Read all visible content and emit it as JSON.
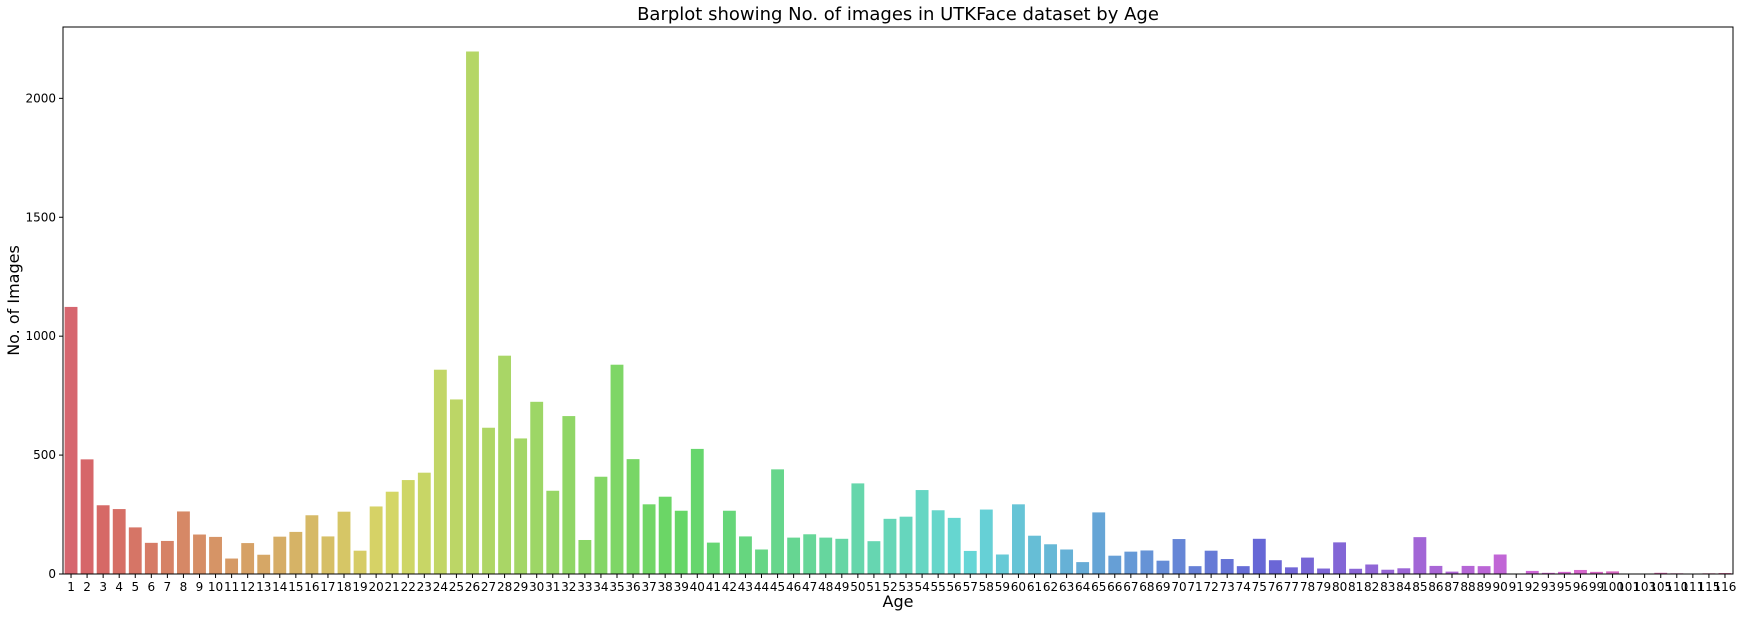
{
  "chart_data": {
    "type": "bar",
    "title": "Barplot showing No. of images in UTKFace dataset by Age",
    "xlabel": "Age",
    "ylabel": "No. of Images",
    "ylim": [
      0,
      2300
    ],
    "yticks": [
      0,
      500,
      1000,
      1500,
      2000
    ],
    "grid": false,
    "legend": "none",
    "categories": [
      "1",
      "2",
      "3",
      "4",
      "5",
      "6",
      "7",
      "8",
      "9",
      "10",
      "11",
      "12",
      "13",
      "14",
      "15",
      "16",
      "17",
      "18",
      "19",
      "20",
      "21",
      "22",
      "23",
      "24",
      "25",
      "26",
      "27",
      "28",
      "29",
      "30",
      "31",
      "32",
      "33",
      "34",
      "35",
      "36",
      "37",
      "38",
      "39",
      "40",
      "41",
      "42",
      "43",
      "44",
      "45",
      "46",
      "47",
      "48",
      "49",
      "50",
      "51",
      "52",
      "53",
      "54",
      "55",
      "56",
      "57",
      "58",
      "59",
      "60",
      "61",
      "62",
      "63",
      "64",
      "65",
      "66",
      "67",
      "68",
      "69",
      "70",
      "71",
      "72",
      "73",
      "74",
      "75",
      "76",
      "77",
      "78",
      "79",
      "80",
      "81",
      "82",
      "83",
      "84",
      "85",
      "86",
      "87",
      "88",
      "89",
      "90",
      "91",
      "92",
      "93",
      "95",
      "96",
      "99",
      "100",
      "101",
      "103",
      "105",
      "110",
      "111",
      "115",
      "116"
    ],
    "values": [
      1123,
      482,
      289,
      273,
      196,
      131,
      139,
      263,
      166,
      156,
      65,
      130,
      81,
      157,
      177,
      247,
      158,
      262,
      98,
      284,
      346,
      395,
      426,
      859,
      734,
      2197,
      615,
      918,
      570,
      724,
      350,
      664,
      143,
      409,
      880,
      483,
      293,
      325,
      266,
      526,
      132,
      266,
      158,
      103,
      440,
      153,
      167,
      153,
      148,
      381,
      138,
      232,
      241,
      353,
      268,
      236,
      97,
      271,
      82,
      293,
      161,
      125,
      103,
      50,
      259,
      77,
      94,
      99,
      56,
      147,
      33,
      98,
      63,
      33,
      148,
      58,
      28,
      69,
      23,
      133,
      22,
      40,
      18,
      24,
      155,
      34,
      10,
      34,
      33,
      82,
      2,
      13,
      5,
      9,
      17,
      9,
      11,
      2,
      1,
      5,
      3,
      1,
      3,
      4
    ]
  }
}
